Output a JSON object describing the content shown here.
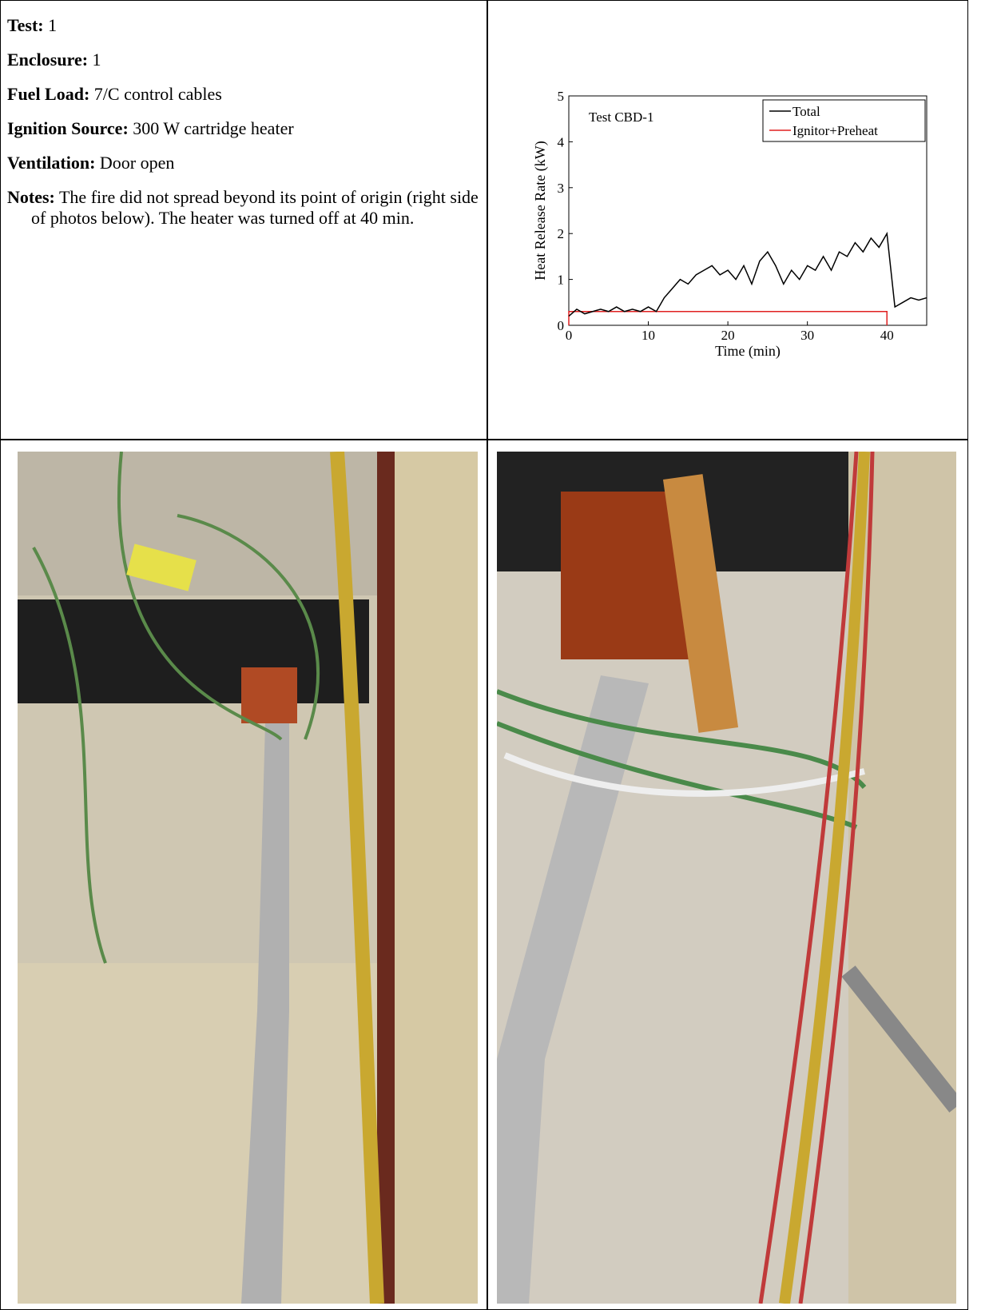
{
  "fields": [
    {
      "label": "Test:",
      "value": "1"
    },
    {
      "label": "Enclosure:",
      "value": "1"
    },
    {
      "label": "Fuel Load:",
      "value": "7/C control cables"
    },
    {
      "label": "Ignition Source:",
      "value": "300 W cartridge heater"
    },
    {
      "label": "Ventilation:",
      "value": "Door open"
    },
    {
      "label": "Notes:",
      "value": "The fire did not spread beyond its point of origin (right side of photos below). The heater was turned off at 40 min."
    }
  ],
  "chart_data": {
    "type": "line",
    "annotation": "Test CBD-1",
    "x_label": "Time (min)",
    "y_label": "Heat Release Rate (kW)",
    "xlim": [
      0,
      45
    ],
    "ylim": [
      0,
      5
    ],
    "xticks": [
      0,
      10,
      20,
      30,
      40
    ],
    "yticks": [
      0,
      1,
      2,
      3,
      4,
      5
    ],
    "series": [
      {
        "name": "Total",
        "color": "#000000",
        "x": [
          0,
          1,
          2,
          3,
          4,
          5,
          6,
          7,
          8,
          9,
          10,
          11,
          12,
          13,
          14,
          15,
          16,
          17,
          18,
          19,
          20,
          21,
          22,
          23,
          24,
          25,
          26,
          27,
          28,
          29,
          30,
          31,
          32,
          33,
          34,
          35,
          36,
          37,
          38,
          39,
          40,
          41,
          42,
          43,
          44,
          45
        ],
        "values": [
          0.2,
          0.35,
          0.25,
          0.3,
          0.35,
          0.3,
          0.4,
          0.3,
          0.35,
          0.3,
          0.4,
          0.3,
          0.6,
          0.8,
          1.0,
          0.9,
          1.1,
          1.2,
          1.3,
          1.1,
          1.2,
          1.0,
          1.3,
          0.9,
          1.4,
          1.6,
          1.3,
          0.9,
          1.2,
          1.0,
          1.3,
          1.2,
          1.5,
          1.2,
          1.6,
          1.5,
          1.8,
          1.6,
          1.9,
          1.7,
          2.0,
          0.4,
          0.5,
          0.6,
          0.55,
          0.6
        ]
      },
      {
        "name": "Ignitor+Preheat",
        "color": "#e02020",
        "x": [
          0,
          0,
          40,
          40
        ],
        "values": [
          0,
          0.3,
          0.3,
          0
        ]
      }
    ]
  }
}
